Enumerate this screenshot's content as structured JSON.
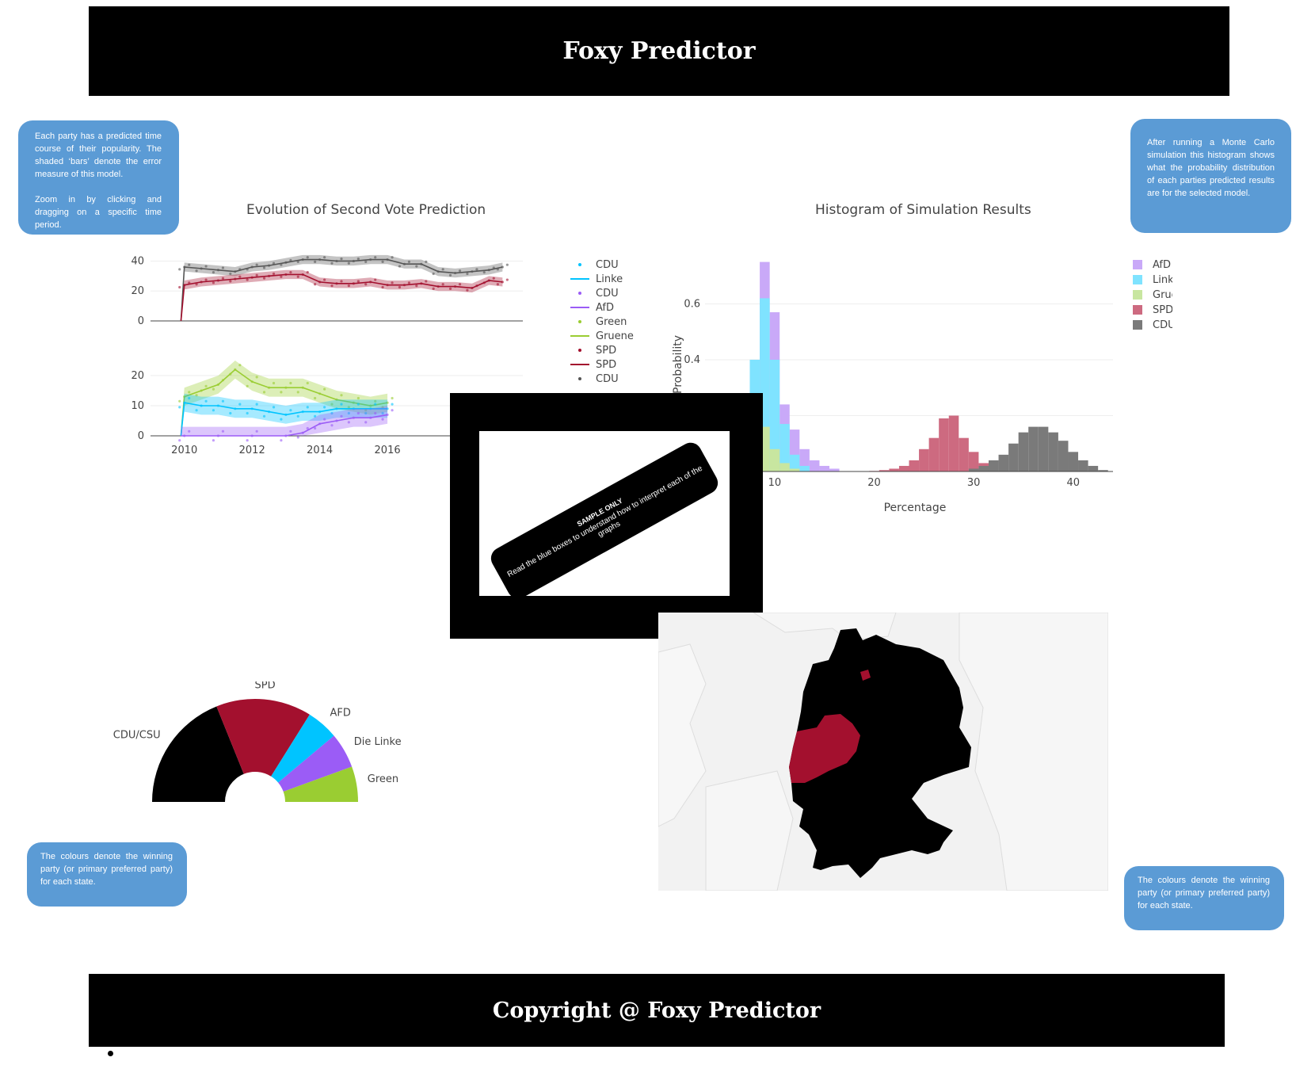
{
  "header": {
    "title": "Foxy Predictor"
  },
  "footer": {
    "text": "Copyright @ Foxy Predictor"
  },
  "info_boxes": {
    "top_left": {
      "p1": "Each party has a predicted time course of their popularity. The shaded ‘bars’ denote the error measure of this model.",
      "p2": "Zoom in by clicking and dragging on a specific time period."
    },
    "top_right": "After running a Monte Carlo simulation this histogram shows what the probability distribution of each parties predicted results are for the selected model.",
    "bottom_left": "The colours denote the winning party (or primary preferred party) for each state.",
    "bottom_right": "The colours denote the winning party (or primary preferred party) for each state."
  },
  "overlay": {
    "line1": "SAMPLE ONLY",
    "line2": "Read the blue boxes to understand how to interpret each of the graphs"
  },
  "colors": {
    "cdu": "#000000",
    "spd": "#a3102e",
    "linke": "#00c4ff",
    "afd": "#9b5cf6",
    "gruene": "#9acd32",
    "box": "#5b9bd5"
  },
  "chart_data": [
    {
      "type": "line",
      "title": "Evolution of Second Vote Prediction",
      "legend": [
        "CDU",
        "Linke",
        "CDU",
        "AfD",
        "Green",
        "Gruene",
        "SPD",
        "SPD",
        "CDU"
      ],
      "panels": [
        {
          "ylim": [
            0,
            45
          ],
          "yticks": [
            0,
            20,
            40
          ],
          "series": [
            {
              "name": "CDU",
              "color": "#555555",
              "x": [
                2009.9,
                2010.0,
                2010.5,
                2011.0,
                2011.5,
                2012.0,
                2012.5,
                2013.0,
                2013.5,
                2014.0,
                2014.5,
                2015.0,
                2015.5,
                2016.0,
                2016.5,
                2017.0,
                2017.5,
                2018.0,
                2018.5,
                2019.0,
                2019.4
              ],
              "y": [
                0,
                36,
                35,
                34,
                33,
                36,
                37,
                39,
                41,
                41,
                40,
                40,
                41,
                41,
                38,
                38,
                33,
                32,
                33,
                34,
                36
              ]
            },
            {
              "name": "SPD",
              "color": "#a3102e",
              "x": [
                2009.9,
                2010.0,
                2010.5,
                2011.0,
                2011.5,
                2012.0,
                2012.5,
                2013.0,
                2013.5,
                2014.0,
                2014.5,
                2015.0,
                2015.5,
                2016.0,
                2016.5,
                2017.0,
                2017.5,
                2018.0,
                2018.5,
                2019.0,
                2019.4
              ],
              "y": [
                0,
                24,
                26,
                27,
                28,
                29,
                30,
                31,
                31,
                26,
                25,
                25,
                26,
                24,
                24,
                25,
                23,
                23,
                22,
                27,
                26
              ]
            }
          ]
        },
        {
          "ylim": [
            0,
            25
          ],
          "yticks": [
            0,
            10,
            20
          ],
          "xticks": [
            "2010",
            "2012",
            "2014",
            "2016"
          ],
          "series": [
            {
              "name": "Gruene",
              "color": "#9acd32",
              "x": [
                2009.9,
                2010.0,
                2010.5,
                2011.0,
                2011.5,
                2012.0,
                2012.5,
                2013.0,
                2013.5,
                2014.0,
                2014.5,
                2015.0,
                2015.5,
                2016.0
              ],
              "y": [
                0,
                13,
                15,
                17,
                22,
                18,
                16,
                16,
                16,
                14,
                12,
                11,
                10,
                11
              ]
            },
            {
              "name": "Linke",
              "color": "#00c4ff",
              "x": [
                2009.9,
                2010.0,
                2010.5,
                2011.0,
                2011.5,
                2012.0,
                2012.5,
                2013.0,
                2013.5,
                2014.0,
                2014.5,
                2015.0,
                2015.5,
                2016.0
              ],
              "y": [
                0,
                11,
                10,
                10,
                9,
                9,
                8,
                7,
                8,
                8,
                9,
                9,
                9,
                9
              ]
            },
            {
              "name": "AfD",
              "color": "#9b5cf6",
              "x": [
                2009.9,
                2010.0,
                2011.0,
                2012.0,
                2013.0,
                2013.5,
                2014.0,
                2014.5,
                2015.0,
                2015.5,
                2016.0
              ],
              "y": [
                0,
                0,
                0,
                0,
                0,
                1,
                4,
                5,
                6,
                6,
                7
              ]
            }
          ]
        }
      ]
    },
    {
      "type": "bar",
      "title": "Histogram of Simulation Results",
      "xlabel": "Percentage",
      "ylabel": "Probability",
      "yticks": [
        0.4,
        0.6
      ],
      "xticks": [
        10,
        20,
        30,
        40
      ],
      "xlim": [
        3,
        44
      ],
      "ylim": [
        0,
        0.78
      ],
      "legend": [
        "AfD",
        "Linke",
        "Gruene",
        "SPD",
        "CDU"
      ],
      "series": [
        {
          "name": "AfD",
          "color": "#c9a9f8",
          "x": [
            5,
            6,
            7,
            8,
            9,
            10,
            11,
            12,
            13,
            14,
            15,
            16
          ],
          "y": [
            0.05,
            0.16,
            0.26,
            0.4,
            0.75,
            0.57,
            0.24,
            0.15,
            0.08,
            0.04,
            0.02,
            0.01
          ]
        },
        {
          "name": "Linke",
          "color": "#7fe3ff",
          "x": [
            5,
            6,
            7,
            8,
            9,
            10,
            11,
            12,
            13
          ],
          "y": [
            0.04,
            0.13,
            0.22,
            0.4,
            0.62,
            0.4,
            0.17,
            0.06,
            0.02
          ]
        },
        {
          "name": "Gruene",
          "color": "#c8e6a0",
          "x": [
            5,
            6,
            7,
            8,
            9,
            10,
            11,
            12
          ],
          "y": [
            0.06,
            0.11,
            0.14,
            0.15,
            0.16,
            0.08,
            0.03,
            0.01
          ]
        },
        {
          "name": "SPD",
          "color": "#cd6a80",
          "x": [
            20,
            21,
            22,
            23,
            24,
            25,
            26,
            27,
            28,
            29,
            30,
            31
          ],
          "y": [
            0.002,
            0.005,
            0.01,
            0.02,
            0.04,
            0.08,
            0.12,
            0.19,
            0.2,
            0.12,
            0.07,
            0.03
          ]
        },
        {
          "name": "CDU",
          "color": "#7a7a7a",
          "x": [
            30,
            31,
            32,
            33,
            34,
            35,
            36,
            37,
            38,
            39,
            40,
            41,
            42,
            43
          ],
          "y": [
            0.01,
            0.02,
            0.04,
            0.06,
            0.1,
            0.14,
            0.16,
            0.16,
            0.14,
            0.11,
            0.07,
            0.04,
            0.02,
            0.005
          ]
        }
      ]
    },
    {
      "type": "pie",
      "subtype": "semicircle",
      "labels": [
        "CDU/CSU",
        "SPD",
        "AFD",
        "Die Linke",
        "Green"
      ],
      "values": [
        34,
        27,
        9,
        10,
        10
      ],
      "colors": [
        "#000000",
        "#a3102e",
        "#00c4ff",
        "#9b5cf6",
        "#9acd32"
      ]
    }
  ]
}
